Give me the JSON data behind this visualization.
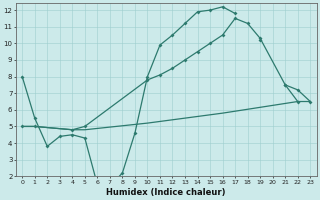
{
  "curve_a_x": [
    0,
    1,
    2,
    3,
    4,
    5,
    6,
    7,
    8,
    9,
    10,
    11,
    12,
    13,
    14,
    15,
    16,
    17,
    18,
    19,
    20,
    21,
    22,
    23
  ],
  "curve_a_y": [
    8.0,
    5.5,
    3.8,
    4.4,
    4.5,
    4.3,
    1.5,
    1.4,
    2.2,
    4.6,
    8.0,
    9.9,
    10.5,
    11.2,
    11.9,
    12.0,
    12.2,
    11.8,
    null,
    10.2,
    null,
    7.5,
    6.5,
    null
  ],
  "curve_b_x": [
    0,
    1,
    4,
    5,
    10,
    16,
    22,
    23
  ],
  "curve_b_y": [
    5.0,
    5.0,
    4.8,
    4.8,
    5.2,
    5.8,
    6.5,
    6.5
  ],
  "curve_c_x": [
    0,
    1,
    4,
    5,
    10,
    11,
    12,
    13,
    14,
    15,
    16,
    17,
    18,
    19,
    21,
    22,
    23
  ],
  "curve_c_y": [
    5.0,
    5.0,
    4.8,
    5.0,
    7.8,
    8.1,
    8.5,
    9.0,
    9.5,
    10.0,
    10.5,
    11.5,
    11.2,
    10.3,
    7.5,
    7.2,
    6.5
  ],
  "color": "#2d7a6e",
  "bgcolor": "#cceaea",
  "xlabel": "Humidex (Indice chaleur)",
  "xlim": [
    -0.5,
    23.5
  ],
  "ylim": [
    2,
    12.4
  ],
  "yticks": [
    2,
    3,
    4,
    5,
    6,
    7,
    8,
    9,
    10,
    11,
    12
  ],
  "xticks": [
    0,
    1,
    2,
    3,
    4,
    5,
    6,
    7,
    8,
    9,
    10,
    11,
    12,
    13,
    14,
    15,
    16,
    17,
    18,
    19,
    20,
    21,
    22,
    23
  ]
}
